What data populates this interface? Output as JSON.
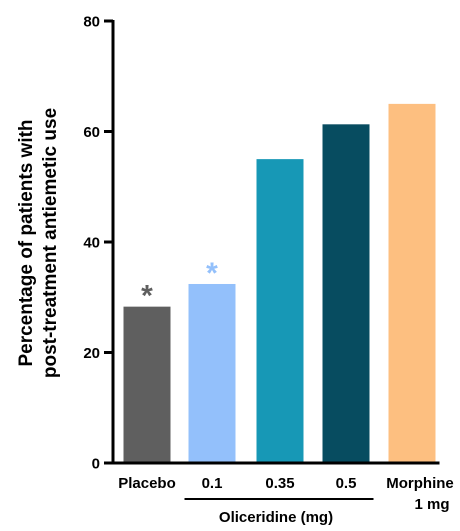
{
  "chart_data": {
    "type": "bar",
    "categories": [
      "Placebo",
      "0.1",
      "0.35",
      "0.5",
      "Morphine"
    ],
    "category_sublabels": [
      "",
      "",
      "",
      "",
      "1 mg"
    ],
    "values": [
      28.3,
      32.4,
      55.0,
      61.3,
      65.0
    ],
    "colors": [
      "#5f5f5f",
      "#93c0fb",
      "#1798b6",
      "#074c60",
      "#fdbf80"
    ],
    "annotations": [
      {
        "category": "Placebo",
        "text": "*",
        "color": "#5f5f5f"
      },
      {
        "category": "0.1",
        "text": "*",
        "color": "#93c0fb"
      }
    ],
    "group_label": {
      "text": "Oliceridine (mg)",
      "categories": [
        "0.1",
        "0.35",
        "0.5"
      ]
    },
    "ylabel_lines": [
      "Percentage of patients with",
      "post-treatment antiemetic use"
    ],
    "ylim": [
      0,
      80
    ],
    "yticks": [
      0,
      20,
      40,
      60,
      80
    ],
    "grid": false,
    "legend": "none"
  }
}
